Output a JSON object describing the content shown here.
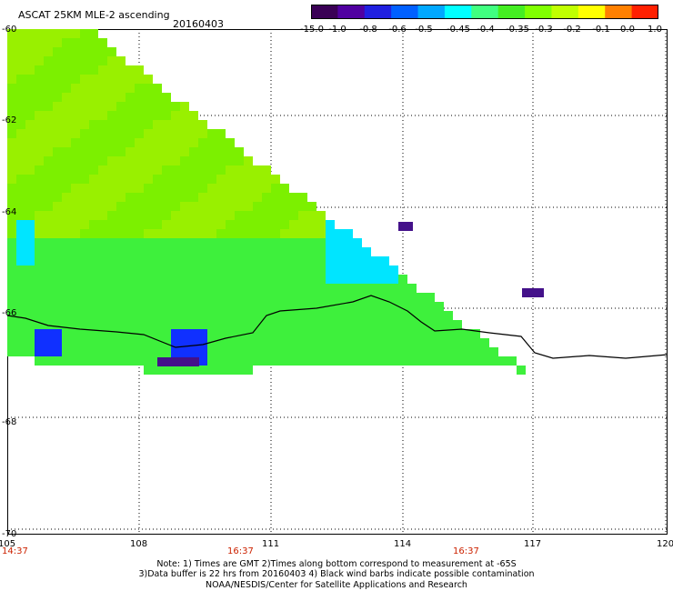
{
  "header": {
    "title": "ASCAT 25KM MLE-2 ascending",
    "date": "20160403"
  },
  "colorbar": {
    "tick_labels": [
      "-15.0",
      "-1.0",
      "-0.8",
      "-0.6",
      "-0.5",
      "-0.45",
      "-0.4",
      "-0.35",
      "-0.3",
      "-0.2",
      "-0.1",
      "0.0",
      "1.0"
    ],
    "colors": [
      "#3a0055",
      "#5000a0",
      "#2020e0",
      "#0060ff",
      "#00a8ff",
      "#00ffff",
      "#40ff80",
      "#44ee22",
      "#80ff00",
      "#c0ff00",
      "#ffff00",
      "#ff8000",
      "#ff2000"
    ]
  },
  "map": {
    "lat_labels": [
      "-60",
      "-62",
      "-64",
      "-66",
      "-68",
      "-70"
    ],
    "lon_labels": [
      "105",
      "108",
      "111",
      "114",
      "117",
      "120"
    ],
    "time_labels": [
      "14:37",
      "16:37",
      "16:37"
    ],
    "palette": {
      "green": "#7cf000",
      "lightgreen": "#99f000",
      "midgreen": "#3ef03c",
      "aqua": "#00e5ff",
      "blue": "#1030ff",
      "deep": "#44118a",
      "outline": "#000000"
    }
  },
  "footer": {
    "line1": "Note: 1) Times are GMT 2)Times along bottom correspond to measurement at -65S",
    "line2": "3)Data buffer is 22 hrs from 20160403 4) Black wind barbs indicate possible contamination",
    "line3": "NOAA/NESDIS/Center for Satellite Applications and Research"
  }
}
